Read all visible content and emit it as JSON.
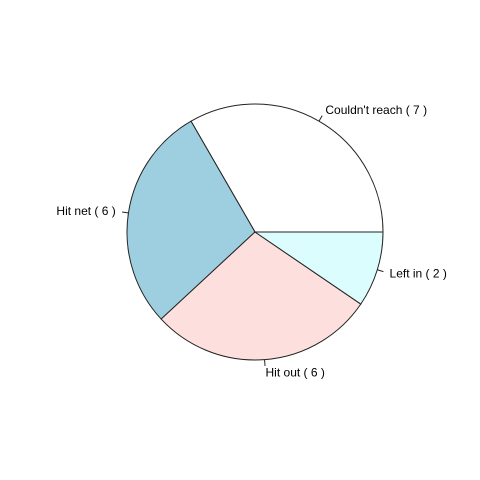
{
  "chart_data": {
    "type": "pie",
    "title": "",
    "slices": [
      {
        "label": "Couldn't reach  ( 7 )",
        "value": 7,
        "color": "#ffffff"
      },
      {
        "label": "Hit net  ( 6 )",
        "value": 6,
        "color": "#9ecfe0"
      },
      {
        "label": "Hit out  ( 6 )",
        "value": 6,
        "color": "#fde0dd"
      },
      {
        "label": "Left in  ( 2 )",
        "value": 2,
        "color": "#dcfdfd"
      }
    ],
    "start_angle_deg": 0,
    "direction": "counterclockwise"
  }
}
